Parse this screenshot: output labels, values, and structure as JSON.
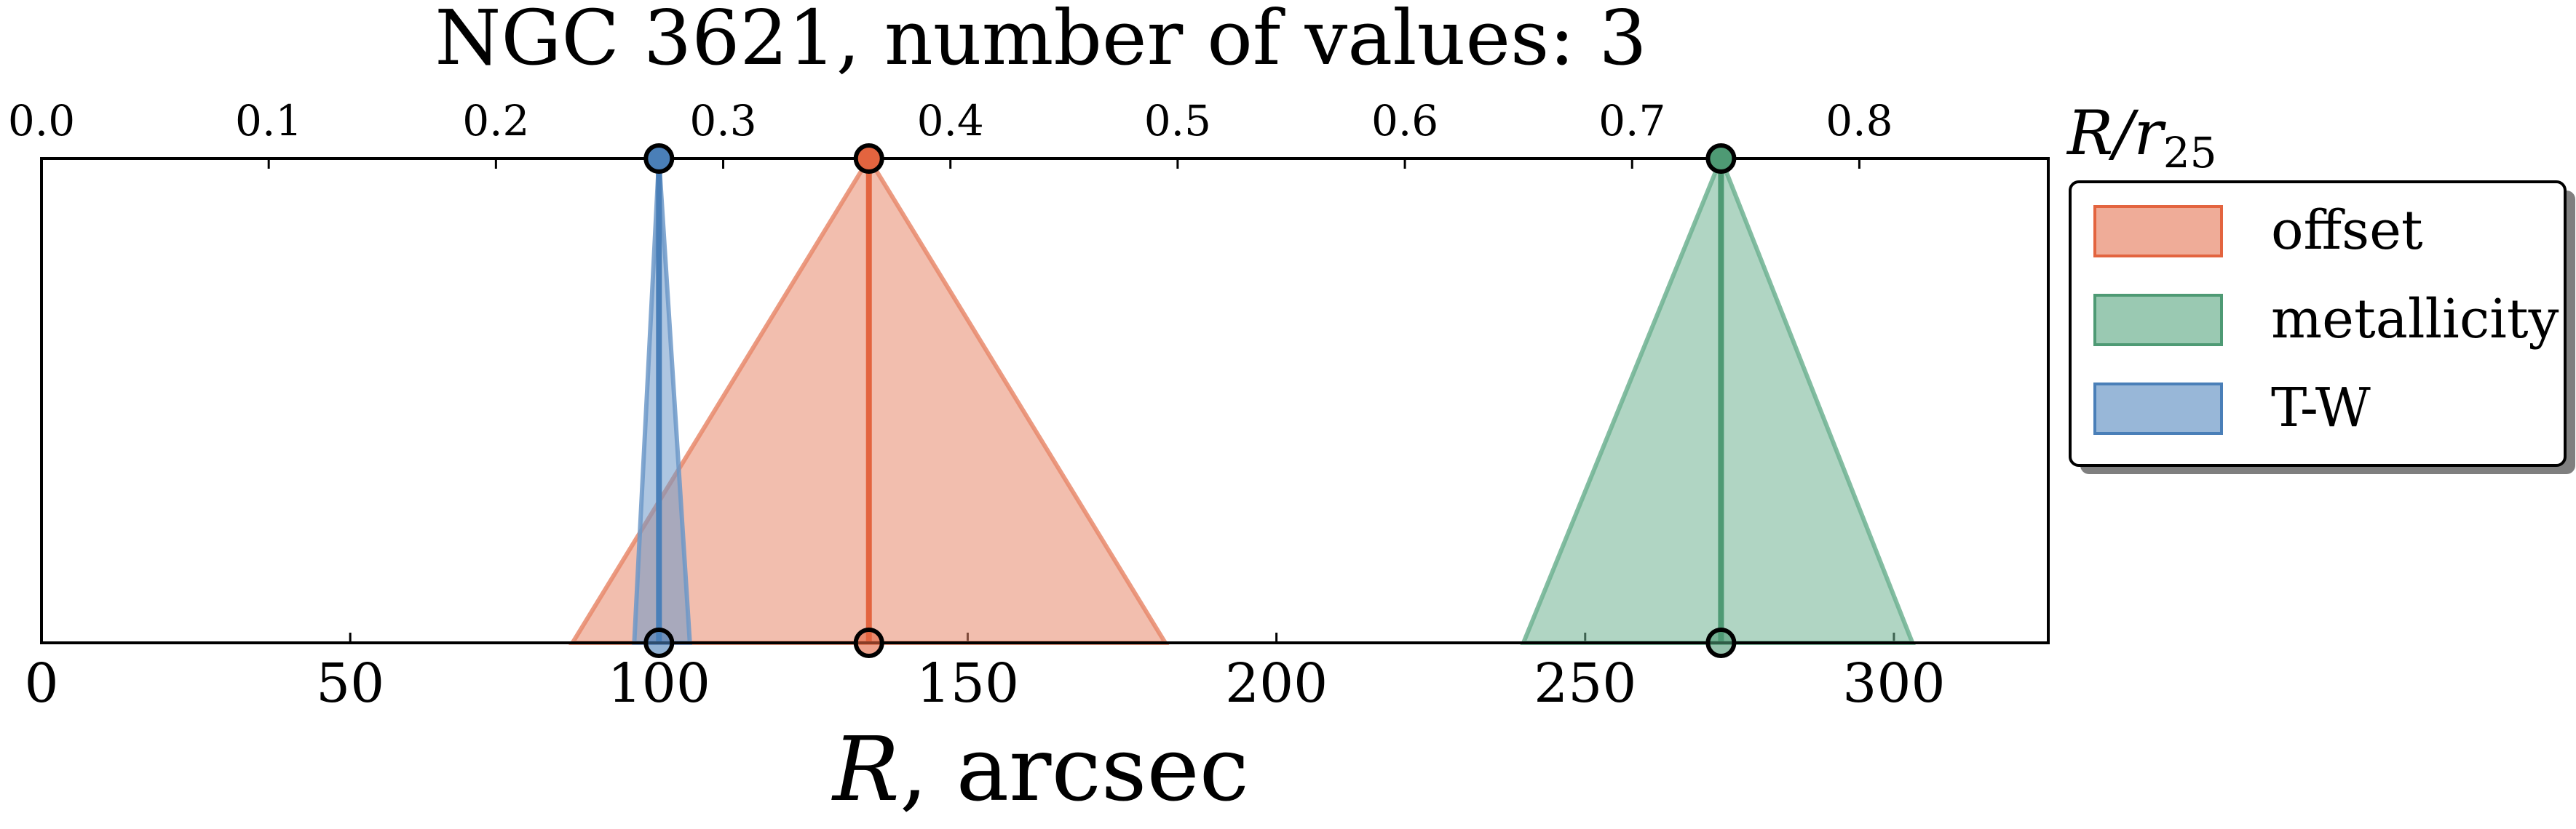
{
  "chart_data": {
    "type": "area",
    "title": "NGC 3621, number of values: 3",
    "xlabel_italic": "R",
    "xlabel_rest": ", arcsec",
    "top_axis_label": "R/r25",
    "top_axis_label_main": "R/r",
    "top_axis_label_sub": "25",
    "xlim": [
      0,
      325
    ],
    "bottom_ticks": [
      0,
      50,
      100,
      150,
      200,
      250,
      300
    ],
    "top_ticks": [
      "0.0",
      "0.1",
      "0.2",
      "0.3",
      "0.4",
      "0.5",
      "0.6",
      "0.7",
      "0.8"
    ],
    "top_scale_r_per_unit": 368,
    "grid": false,
    "legend_position": "outside-right",
    "series": [
      {
        "name": "offset",
        "center": 134,
        "low": 86,
        "high": 182,
        "color": "#e8896c",
        "line_color": "#e3643f"
      },
      {
        "name": "metallicity",
        "center": 272,
        "low": 240,
        "high": 303,
        "color": "#6fb292",
        "line_color": "#4e9a74"
      },
      {
        "name": "T-W",
        "center": 100,
        "low": 96,
        "high": 105,
        "color": "#6c98c8",
        "line_color": "#4a7fb8"
      }
    ]
  }
}
